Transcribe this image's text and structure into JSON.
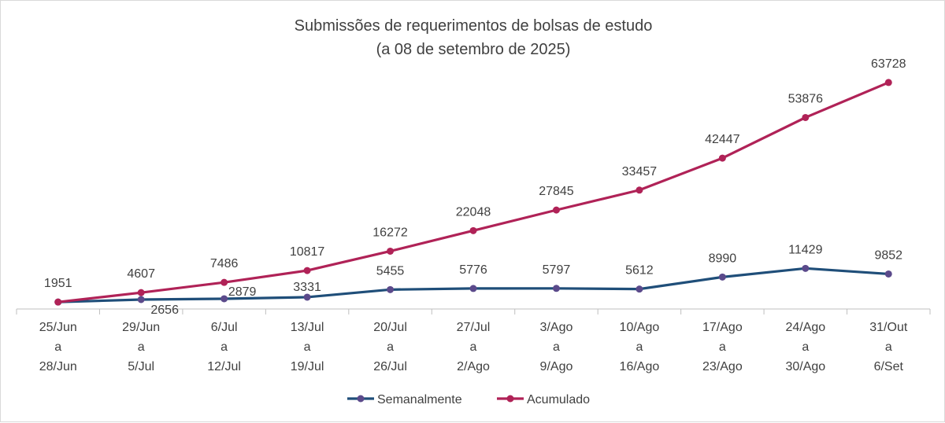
{
  "chart_data": {
    "type": "line",
    "title": "Submissões de requerimentos de bolsas de estudo",
    "subtitle": "(a 08 de setembro de 2025)",
    "categories": [
      [
        "25/Jun",
        "a",
        "28/Jun"
      ],
      [
        "29/Jun",
        "a",
        "5/Jul"
      ],
      [
        "6/Jul",
        "a",
        "12/Jul"
      ],
      [
        "13/Jul",
        "a",
        "19/Jul"
      ],
      [
        "20/Jul",
        "a",
        "26/Jul"
      ],
      [
        "27/Jul",
        "a",
        "2/Ago"
      ],
      [
        "3/Ago",
        "a",
        "9/Ago"
      ],
      [
        "10/Ago",
        "a",
        "16/Ago"
      ],
      [
        "17/Ago",
        "a",
        "23/Ago"
      ],
      [
        "24/Ago",
        "a",
        "30/Ago"
      ],
      [
        "31/Out",
        "a",
        "6/Set"
      ]
    ],
    "series": [
      {
        "name": "Semanalmente",
        "color": "#1f4e79",
        "marker_color": "#5b4a8b",
        "values": [
          1951,
          2656,
          2879,
          3331,
          5455,
          5776,
          5797,
          5612,
          8990,
          11429,
          9852
        ]
      },
      {
        "name": "Acumulado",
        "color": "#b02257",
        "marker_color": "#b02257",
        "values": [
          1951,
          4607,
          7486,
          10817,
          16272,
          22048,
          27845,
          33457,
          42447,
          53876,
          63728
        ]
      }
    ],
    "ylim": [
      0,
      73000
    ],
    "grid": false,
    "legend": "bottom"
  }
}
